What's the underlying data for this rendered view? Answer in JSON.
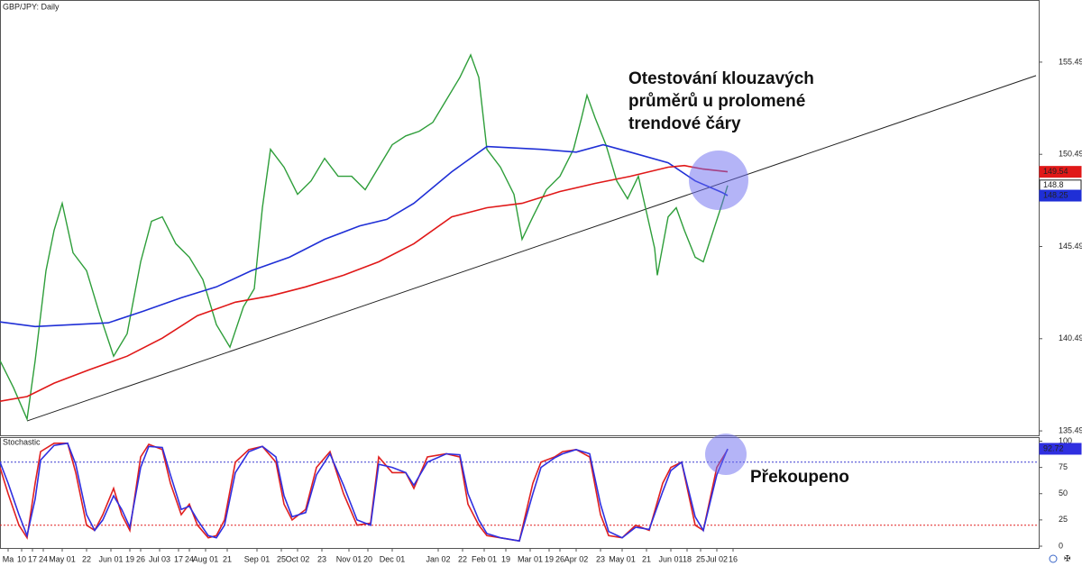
{
  "chart_data": [
    {
      "type": "line",
      "title": "GBP/JPY: Daily",
      "xlim": [
        0,
        384
      ],
      "ylim": [
        135.25,
        158.81
      ],
      "yticks": [
        135.49,
        140.49,
        145.49,
        150.49,
        155.49
      ],
      "series": [
        {
          "color": "#2e9e3a",
          "x": [
            0,
            5,
            10,
            13,
            17,
            20,
            23,
            27,
            32,
            37,
            42,
            47,
            52,
            56,
            60,
            65,
            70,
            75,
            80,
            85,
            90,
            94,
            97,
            100,
            105,
            110,
            115,
            120,
            125,
            130,
            135,
            140,
            145,
            150,
            155,
            160,
            165,
            170,
            174,
            177,
            180,
            185,
            190,
            193,
            197,
            202,
            207,
            212,
            215,
            217,
            220,
            224,
            228,
            232,
            236,
            239,
            242,
            243,
            247,
            250,
            253,
            257,
            260,
            263,
            267,
            269
          ],
          "values": [
            139.3,
            137.83,
            136.13,
            139.3,
            144.18,
            146.37,
            147.83,
            145.15,
            144.18,
            141.74,
            139.54,
            140.76,
            144.66,
            146.86,
            147.1,
            145.64,
            144.91,
            143.69,
            141.25,
            140.03,
            142.22,
            143.2,
            147.59,
            150.76,
            149.79,
            148.32,
            149.05,
            150.27,
            149.3,
            149.3,
            148.57,
            149.79,
            151.01,
            151.49,
            151.74,
            152.22,
            153.44,
            154.66,
            155.88,
            154.66,
            150.76,
            149.79,
            148.32,
            145.88,
            147.1,
            148.57,
            149.3,
            150.76,
            152.47,
            153.69,
            152.47,
            151.01,
            149.05,
            148.08,
            149.3,
            147.35,
            145.4,
            143.93,
            147.1,
            147.59,
            146.37,
            144.91,
            144.66,
            146.03,
            147.83,
            148.8
          ]
        },
        {
          "color": "#1f2fd6",
          "x": [
            0,
            13,
            27,
            40,
            53,
            67,
            80,
            93,
            107,
            120,
            133,
            143,
            153,
            167,
            180,
            200,
            213,
            223,
            233,
            247,
            257,
            267,
            269
          ],
          "values": [
            141.4,
            141.15,
            141.25,
            141.35,
            141.98,
            142.71,
            143.3,
            144.18,
            144.91,
            145.88,
            146.61,
            146.96,
            147.83,
            149.54,
            150.91,
            150.76,
            150.61,
            151.01,
            150.61,
            150.03,
            149.05,
            148.42,
            148.25
          ]
        },
        {
          "color": "#e01818",
          "x": [
            0,
            10,
            20,
            33,
            47,
            60,
            73,
            87,
            100,
            113,
            127,
            140,
            153,
            167,
            180,
            193,
            207,
            220,
            233,
            247,
            253,
            260,
            269
          ],
          "values": [
            137.1,
            137.35,
            138.08,
            138.81,
            139.54,
            140.52,
            141.74,
            142.47,
            142.81,
            143.3,
            143.93,
            144.66,
            145.64,
            147.1,
            147.59,
            147.83,
            148.47,
            148.91,
            149.3,
            149.79,
            149.88,
            149.69,
            149.54
          ]
        }
      ],
      "trendline": {
        "x": [
          10,
          383
        ],
        "values": [
          136.03,
          154.76
        ]
      },
      "annotation": [
        "Otestování klouzavých",
        "průměrů u prolomené",
        "trendové čáry"
      ]
    },
    {
      "type": "line",
      "title": "Stochastic",
      "xlim": [
        0,
        384
      ],
      "ylim": [
        0,
        103
      ],
      "yticks": [
        0,
        25,
        50,
        75,
        100
      ],
      "levels": [
        {
          "value": 80,
          "color": "#3a3ad0"
        },
        {
          "value": 20,
          "color": "#e02020"
        }
      ],
      "series": [
        {
          "color": "#e02020",
          "x": [
            0,
            3,
            7,
            10,
            13,
            15,
            20,
            25,
            28,
            32,
            35,
            38,
            42,
            45,
            48,
            52,
            55,
            60,
            63,
            67,
            70,
            73,
            77,
            80,
            83,
            87,
            92,
            97,
            102,
            105,
            108,
            113,
            117,
            122,
            127,
            132,
            137,
            140,
            145,
            150,
            153,
            158,
            165,
            170,
            173,
            177,
            180,
            185,
            192,
            197,
            200,
            205,
            208,
            213,
            218,
            222,
            225,
            230,
            235,
            240,
            245,
            248,
            252,
            257,
            260,
            265,
            269
          ],
          "values": [
            75,
            50,
            20,
            8,
            60,
            90,
            98,
            98,
            70,
            20,
            15,
            30,
            55,
            30,
            15,
            85,
            97,
            92,
            60,
            30,
            40,
            20,
            8,
            10,
            25,
            80,
            92,
            95,
            80,
            40,
            25,
            35,
            75,
            90,
            50,
            20,
            22,
            85,
            70,
            70,
            55,
            85,
            88,
            85,
            40,
            20,
            10,
            8,
            5,
            60,
            80,
            85,
            90,
            92,
            85,
            30,
            10,
            8,
            20,
            15,
            60,
            75,
            80,
            20,
            15,
            75,
            92
          ]
        },
        {
          "color": "#2f2fe0",
          "x": [
            0,
            3,
            7,
            10,
            13,
            15,
            20,
            25,
            28,
            32,
            35,
            38,
            42,
            45,
            48,
            52,
            55,
            60,
            63,
            67,
            70,
            73,
            77,
            80,
            83,
            87,
            92,
            97,
            102,
            105,
            108,
            113,
            117,
            122,
            127,
            132,
            137,
            140,
            145,
            150,
            153,
            158,
            165,
            170,
            173,
            177,
            180,
            185,
            192,
            197,
            200,
            205,
            208,
            213,
            218,
            222,
            225,
            230,
            235,
            240,
            245,
            248,
            252,
            257,
            260,
            265,
            269
          ],
          "values": [
            80,
            60,
            30,
            10,
            45,
            82,
            96,
            98,
            78,
            30,
            15,
            25,
            48,
            35,
            18,
            75,
            95,
            94,
            68,
            35,
            38,
            25,
            10,
            8,
            20,
            70,
            90,
            95,
            85,
            48,
            28,
            32,
            68,
            88,
            58,
            25,
            20,
            78,
            75,
            70,
            58,
            80,
            88,
            87,
            50,
            25,
            12,
            8,
            5,
            50,
            75,
            84,
            88,
            92,
            88,
            40,
            14,
            8,
            18,
            16,
            52,
            72,
            80,
            28,
            15,
            68,
            92.72
          ]
        }
      ],
      "xticks": [
        {
          "value": 3,
          "label": "Ma"
        },
        {
          "value": 8,
          "label": "10"
        },
        {
          "value": 12,
          "label": "17"
        },
        {
          "value": 16,
          "label": "24"
        },
        {
          "value": 23,
          "label": "May 01"
        },
        {
          "value": 32,
          "label": "22"
        },
        {
          "value": 41,
          "label": "Jun 01"
        },
        {
          "value": 48,
          "label": "19"
        },
        {
          "value": 52,
          "label": "26"
        },
        {
          "value": 59,
          "label": "Jul 03"
        },
        {
          "value": 66,
          "label": "17"
        },
        {
          "value": 70,
          "label": "24"
        },
        {
          "value": 76,
          "label": "Aug 01"
        },
        {
          "value": 84,
          "label": "21"
        },
        {
          "value": 95,
          "label": "Sep 01"
        },
        {
          "value": 104,
          "label": "25"
        },
        {
          "value": 110,
          "label": "Oct 02"
        },
        {
          "value": 119,
          "label": "23"
        },
        {
          "value": 129,
          "label": "Nov 01"
        },
        {
          "value": 136,
          "label": "20"
        },
        {
          "value": 145,
          "label": "Dec 01"
        },
        {
          "value": 162,
          "label": "Jan 02"
        },
        {
          "value": 171,
          "label": "22"
        },
        {
          "value": 179,
          "label": "Feb 01"
        },
        {
          "value": 187,
          "label": "19"
        },
        {
          "value": 196,
          "label": "Mar 01"
        },
        {
          "value": 203,
          "label": "19"
        },
        {
          "value": 207,
          "label": "26"
        },
        {
          "value": 213,
          "label": "Apr 02"
        },
        {
          "value": 222,
          "label": "23"
        },
        {
          "value": 230,
          "label": "May 01"
        },
        {
          "value": 239,
          "label": "21"
        },
        {
          "value": 248,
          "label": "Jun 01"
        },
        {
          "value": 254,
          "label": "18"
        },
        {
          "value": 259,
          "label": "25"
        },
        {
          "value": 265,
          "label": "Jul 02"
        },
        {
          "value": 271,
          "label": "16"
        }
      ],
      "annotation": "Překoupeno"
    }
  ]
}
